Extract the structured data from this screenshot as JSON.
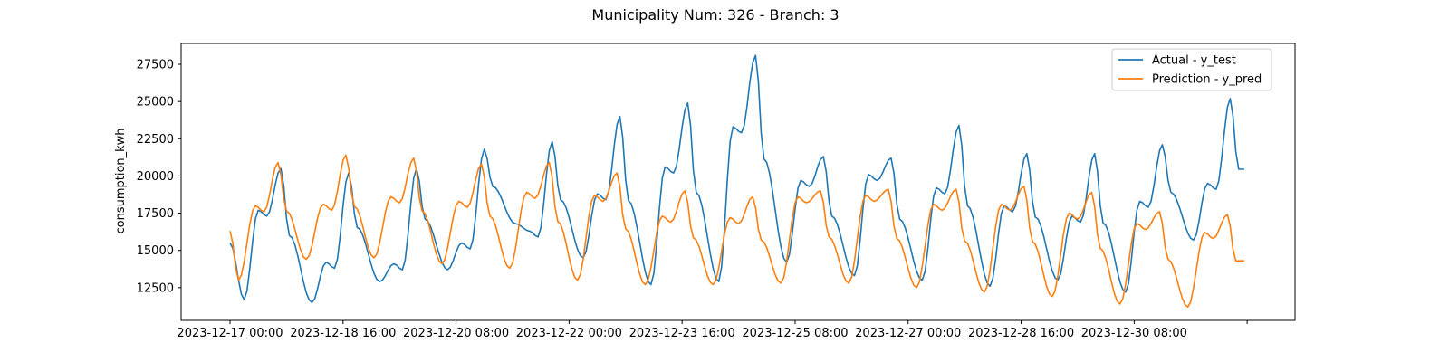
{
  "chart_data": {
    "type": "line",
    "title": "Municipality Num: 326 - Branch: 3",
    "xlabel": "",
    "ylabel": "consumption_kwh",
    "x_start": "2023-12-17 00:00",
    "x_end": "2023-12-31 23:00",
    "x_step_hours": 1,
    "xticks": [
      "2023-12-17 00:00",
      "2023-12-18 16:00",
      "2023-12-20 08:00",
      "2023-12-22 00:00",
      "2023-12-23 16:00",
      "2023-12-25 08:00",
      "2023-12-27 00:00",
      "2023-12-28 16:00",
      "2023-12-30 08:00",
      ""
    ],
    "ylim": [
      10300,
      28900
    ],
    "yticks": [
      12500,
      15000,
      17500,
      20000,
      22500,
      25000,
      27500
    ],
    "grid": false,
    "legend_position": "top-right",
    "series": [
      {
        "name": "Actual - y_test",
        "color": "#1f77b4",
        "daily_peak": [
          20500,
          20200,
          20500,
          21800,
          22300,
          24000,
          24900,
          28100,
          21300,
          21200,
          23400,
          21500,
          21500,
          22100,
          25200
        ],
        "morning": [
          17700,
          14200,
          14100,
          15500,
          16300,
          18800,
          20600,
          23300,
          19700,
          20100,
          19200,
          18000,
          17300,
          18300,
          19500
        ],
        "day_min": [
          11700,
          11500,
          12900,
          13700,
          16800,
          14500,
          12700,
          12900,
          14200,
          13300,
          13000,
          12600,
          13000,
          12200,
          15700
        ]
      },
      {
        "name": "Prediction - y_pred",
        "color": "#ff7f0e",
        "daily_peak": [
          20900,
          21400,
          21200,
          20800,
          20900,
          20200,
          19000,
          18600,
          19000,
          19100,
          19100,
          19300,
          18900,
          17600,
          17400
        ],
        "morning": [
          18000,
          18100,
          18600,
          18300,
          18900,
          18700,
          17300,
          17200,
          18600,
          18700,
          18100,
          18100,
          17500,
          16800,
          16200
        ],
        "day_min": [
          13000,
          14400,
          14500,
          14100,
          13800,
          13000,
          12700,
          12700,
          12800,
          12800,
          12500,
          12200,
          11900,
          11400,
          11200
        ]
      }
    ]
  }
}
